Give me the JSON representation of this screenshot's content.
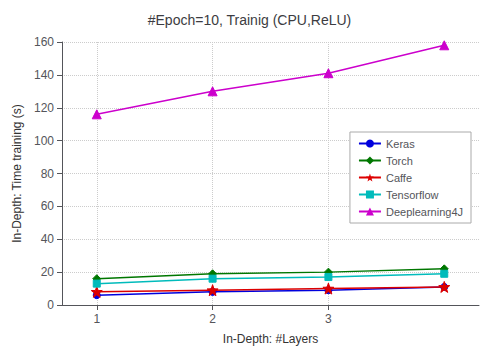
{
  "chart_data": {
    "type": "line",
    "title": "#Epoch=10, Trainig (CPU,ReLU)",
    "xlabel": "In-Depth: #Layers",
    "ylabel": "In-Depth: Time training (s)",
    "x": [
      1,
      2,
      3,
      4
    ],
    "series": [
      {
        "name": "Keras",
        "color": "#0000dd",
        "marker": "circle",
        "values": [
          6,
          8,
          9,
          11
        ]
      },
      {
        "name": "Torch",
        "color": "#007700",
        "marker": "diamond",
        "values": [
          16,
          19,
          20,
          22
        ]
      },
      {
        "name": "Caffe",
        "color": "#dd0000",
        "marker": "star",
        "values": [
          8,
          9,
          10,
          11
        ]
      },
      {
        "name": "Tensorflow",
        "color": "#00bbbb",
        "marker": "square",
        "values": [
          13,
          16,
          17,
          19
        ]
      },
      {
        "name": "Deeplearning4J",
        "color": "#cc00cc",
        "marker": "triangle",
        "values": [
          116,
          130,
          141,
          158
        ]
      }
    ],
    "xlim": [
      0.7,
      4.3
    ],
    "ylim": [
      0,
      160
    ],
    "xticks": [
      1,
      2,
      3
    ],
    "yticks": [
      0,
      20,
      40,
      60,
      80,
      100,
      120,
      140,
      160
    ],
    "grid": true,
    "legend": "center right"
  }
}
